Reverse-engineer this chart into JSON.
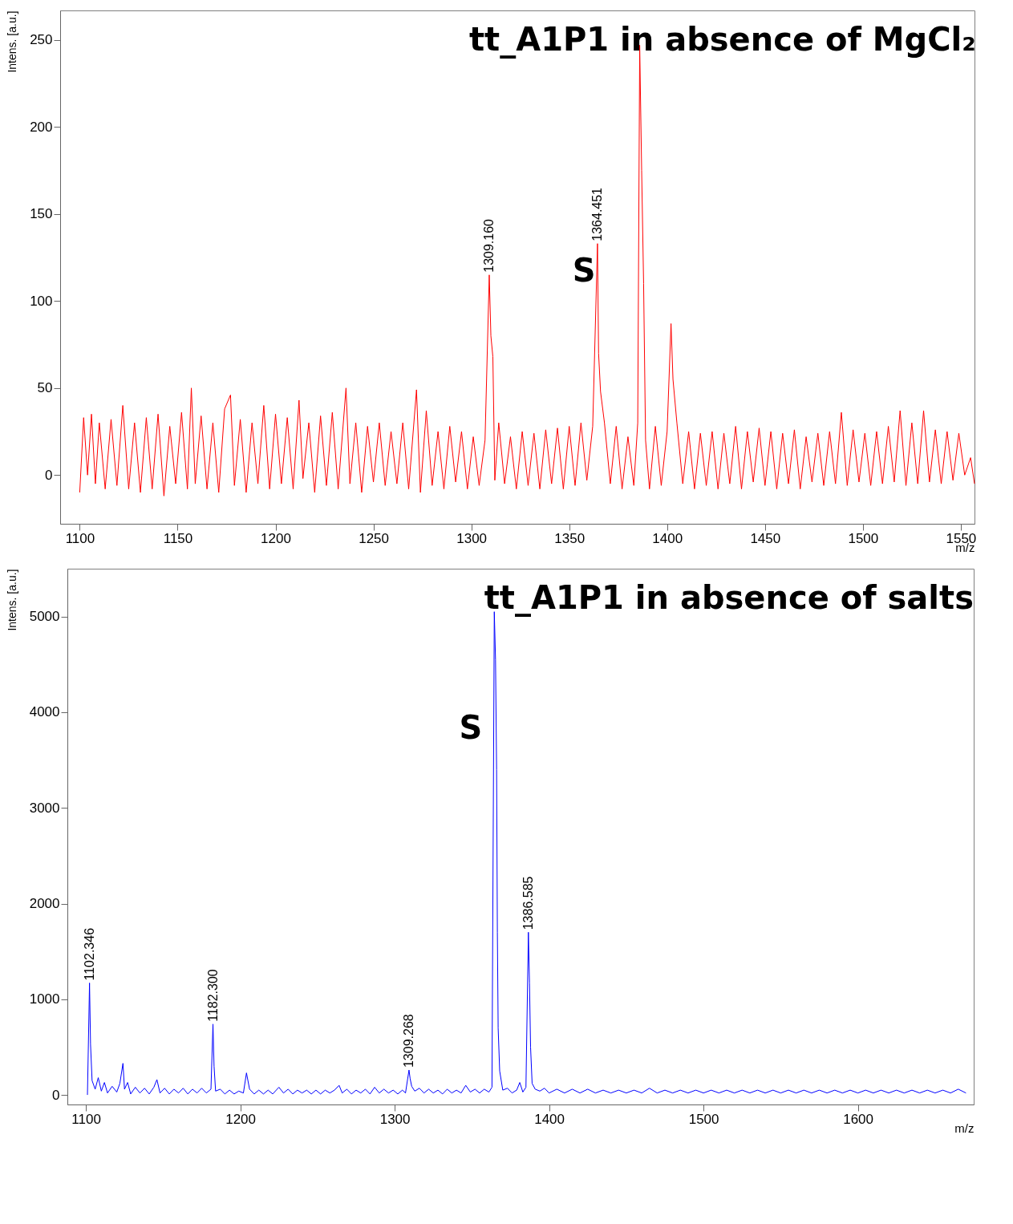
{
  "chart_data": [
    {
      "type": "line",
      "title": "tt_A1P1 in absence of MgCl₂",
      "xlabel": "m/z",
      "ylabel": "Intens. [a.u.]",
      "xlim": [
        1090,
        1557
      ],
      "ylim": [
        -28,
        267
      ],
      "xticks": [
        1100,
        1150,
        1200,
        1250,
        1300,
        1350,
        1400,
        1450,
        1500,
        1550
      ],
      "yticks": [
        0,
        50,
        100,
        150,
        200,
        250
      ],
      "grid": false,
      "annotations": [
        {
          "text": "1309.160",
          "x": 1309.16,
          "y": 115
        },
        {
          "text": "1364.451",
          "x": 1364.451,
          "y": 133
        },
        "S"
      ],
      "series": [
        {
          "color": "#ff0000",
          "x": [
            1100,
            1102,
            1104,
            1106,
            1108,
            1110,
            1113,
            1116,
            1119,
            1122,
            1125,
            1128,
            1131,
            1134,
            1137,
            1140,
            1143,
            1146,
            1149,
            1152,
            1155,
            1157,
            1159,
            1162,
            1165,
            1168,
            1171,
            1174,
            1177,
            1179,
            1182,
            1185,
            1188,
            1191,
            1194,
            1197,
            1200,
            1203,
            1206,
            1209,
            1212,
            1214,
            1217,
            1220,
            1223,
            1226,
            1229,
            1232,
            1236,
            1238,
            1241,
            1244,
            1247,
            1250,
            1253,
            1256,
            1259,
            1262,
            1265,
            1268,
            1272,
            1274,
            1277,
            1280,
            1283,
            1286,
            1289,
            1292,
            1295,
            1298,
            1301,
            1304,
            1307,
            1309.16,
            1310,
            1311,
            1312,
            1314,
            1317,
            1320,
            1323,
            1326,
            1329,
            1332,
            1335,
            1338,
            1341,
            1344,
            1347,
            1350,
            1353,
            1356,
            1359,
            1362,
            1364.45,
            1365,
            1366,
            1368,
            1371,
            1374,
            1377,
            1380,
            1383,
            1385,
            1386,
            1387,
            1388,
            1389,
            1391,
            1394,
            1397,
            1400,
            1402,
            1403,
            1405,
            1408,
            1411,
            1414,
            1417,
            1420,
            1423,
            1426,
            1429,
            1432,
            1435,
            1438,
            1441,
            1444,
            1447,
            1450,
            1453,
            1456,
            1459,
            1462,
            1465,
            1468,
            1471,
            1474,
            1477,
            1480,
            1483,
            1486,
            1489,
            1492,
            1495,
            1498,
            1501,
            1504,
            1507,
            1510,
            1513,
            1516,
            1519,
            1522,
            1525,
            1528,
            1531,
            1534,
            1537,
            1540,
            1543,
            1546,
            1549,
            1552,
            1555,
            1557
          ],
          "values": [
            -10,
            33,
            0,
            35,
            -5,
            30,
            -8,
            32,
            -6,
            40,
            -8,
            30,
            -10,
            33,
            -8,
            35,
            -12,
            28,
            -5,
            36,
            -8,
            50,
            -5,
            34,
            -8,
            30,
            -10,
            38,
            46,
            -6,
            32,
            -10,
            30,
            -5,
            40,
            -8,
            35,
            -5,
            33,
            -8,
            43,
            -2,
            30,
            -10,
            34,
            -6,
            36,
            -8,
            50,
            -5,
            30,
            -10,
            28,
            -4,
            30,
            -6,
            25,
            -5,
            30,
            -8,
            49,
            -10,
            37,
            -6,
            25,
            -8,
            28,
            -4,
            25,
            -8,
            22,
            -6,
            20,
            115,
            80,
            68,
            -3,
            30,
            -5,
            22,
            -8,
            25,
            -6,
            24,
            -8,
            26,
            -5,
            27,
            -8,
            28,
            -6,
            30,
            -3,
            28,
            133,
            70,
            48,
            30,
            -5,
            28,
            -8,
            22,
            -6,
            30,
            247,
            175,
            110,
            20,
            -8,
            28,
            -6,
            25,
            87,
            55,
            30,
            -5,
            25,
            -8,
            24,
            -6,
            25,
            -8,
            24,
            -5,
            28,
            -8,
            25,
            -4,
            27,
            -6,
            25,
            -8,
            24,
            -5,
            26,
            -8,
            22,
            -4,
            24,
            -6,
            25,
            -5,
            36,
            -6,
            26,
            -4,
            24,
            -6,
            25,
            -5,
            28,
            -4,
            37,
            -6,
            30,
            -5,
            37,
            -4,
            26,
            -5,
            25,
            -3,
            24,
            0,
            10,
            -5
          ]
        }
      ]
    },
    {
      "type": "line",
      "title": "tt_A1P1 in absence of salts",
      "xlabel": "m/z",
      "ylabel": "Intens. [a.u.]",
      "xlim": [
        1088,
        1675
      ],
      "ylim": [
        -100,
        5500
      ],
      "xticks": [
        1100,
        1200,
        1300,
        1400,
        1500,
        1600
      ],
      "yticks": [
        0,
        1000,
        2000,
        3000,
        4000,
        5000
      ],
      "grid": false,
      "annotations": [
        {
          "text": "1102.346",
          "x": 1102.346,
          "y": 1170
        },
        {
          "text": "1182.300",
          "x": 1182.3,
          "y": 740
        },
        {
          "text": "1309.268",
          "x": 1309.268,
          "y": 260
        },
        {
          "text": "1386.585",
          "x": 1386.585,
          "y": 1700
        },
        "S"
      ],
      "series": [
        {
          "color": "#0000ff",
          "x": [
            1101,
            1102.346,
            1103,
            1104,
            1106,
            1108,
            1110,
            1112,
            1114,
            1117,
            1120,
            1122,
            1124,
            1125,
            1127,
            1129,
            1132,
            1135,
            1138,
            1141,
            1144,
            1146,
            1148,
            1151,
            1154,
            1157,
            1160,
            1163,
            1166,
            1169,
            1172,
            1175,
            1178,
            1181,
            1182.3,
            1183,
            1184,
            1187,
            1190,
            1193,
            1196,
            1199,
            1202,
            1204,
            1206,
            1209,
            1212,
            1215,
            1218,
            1221,
            1225,
            1228,
            1231,
            1234,
            1237,
            1240,
            1243,
            1246,
            1249,
            1252,
            1255,
            1258,
            1261,
            1264,
            1266,
            1269,
            1272,
            1275,
            1278,
            1281,
            1284,
            1287,
            1290,
            1293,
            1296,
            1299,
            1302,
            1305,
            1307,
            1309.268,
            1310,
            1311,
            1313,
            1316,
            1319,
            1322,
            1325,
            1328,
            1331,
            1334,
            1337,
            1340,
            1343,
            1346,
            1349,
            1352,
            1355,
            1358,
            1361,
            1363,
            1364.5,
            1365.3,
            1366,
            1366.5,
            1367,
            1368,
            1370,
            1373,
            1376,
            1379,
            1381,
            1383,
            1385,
            1386.585,
            1387.3,
            1388,
            1389,
            1391,
            1394,
            1397,
            1400,
            1405,
            1410,
            1415,
            1420,
            1425,
            1430,
            1435,
            1440,
            1445,
            1450,
            1455,
            1460,
            1465,
            1470,
            1475,
            1480,
            1485,
            1490,
            1495,
            1500,
            1505,
            1510,
            1515,
            1520,
            1525,
            1530,
            1535,
            1540,
            1545,
            1550,
            1555,
            1560,
            1565,
            1570,
            1575,
            1580,
            1585,
            1590,
            1595,
            1600,
            1605,
            1610,
            1615,
            1620,
            1625,
            1630,
            1635,
            1640,
            1645,
            1650,
            1655,
            1660,
            1665,
            1670
          ],
          "values": [
            0,
            1170,
            530,
            150,
            60,
            180,
            40,
            130,
            20,
            90,
            30,
            120,
            330,
            60,
            130,
            10,
            80,
            20,
            70,
            10,
            80,
            160,
            20,
            70,
            10,
            60,
            20,
            70,
            10,
            60,
            20,
            70,
            20,
            60,
            740,
            300,
            40,
            60,
            10,
            50,
            10,
            40,
            20,
            230,
            60,
            10,
            50,
            10,
            50,
            10,
            80,
            20,
            60,
            10,
            50,
            20,
            50,
            10,
            50,
            10,
            50,
            20,
            50,
            100,
            20,
            60,
            10,
            50,
            20,
            60,
            10,
            80,
            20,
            60,
            20,
            50,
            10,
            50,
            20,
            260,
            170,
            90,
            40,
            70,
            20,
            60,
            20,
            50,
            10,
            60,
            20,
            50,
            20,
            100,
            30,
            60,
            20,
            60,
            30,
            80,
            5050,
            4550,
            3400,
            1700,
            700,
            250,
            50,
            70,
            20,
            50,
            130,
            30,
            80,
            1700,
            1170,
            500,
            120,
            60,
            40,
            70,
            20,
            60,
            20,
            60,
            20,
            60,
            20,
            50,
            20,
            50,
            20,
            50,
            20,
            70,
            20,
            50,
            20,
            50,
            20,
            50,
            20,
            50,
            20,
            50,
            20,
            50,
            20,
            50,
            20,
            50,
            20,
            50,
            20,
            50,
            20,
            50,
            20,
            50,
            20,
            50,
            20,
            50,
            20,
            50,
            20,
            50,
            20,
            50,
            20,
            50,
            20,
            50,
            20,
            60,
            20
          ]
        }
      ]
    }
  ]
}
